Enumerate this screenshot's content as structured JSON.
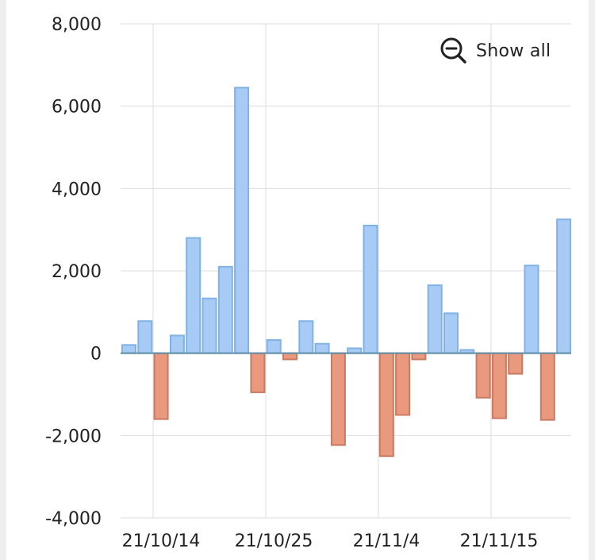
{
  "show_all": {
    "label": "Show all",
    "icon": "zoom-out-icon"
  },
  "colors": {
    "positive_fill": "#a8cbf5",
    "positive_stroke": "#7fb2e5",
    "negative_fill": "#e99a7e",
    "negative_stroke": "#c97a62",
    "grid": "#dddddd",
    "baseline": "#5f8fa8",
    "text": "#222222"
  },
  "chart_data": {
    "type": "bar",
    "ylim": [
      -4000,
      8000
    ],
    "y_ticks": [
      -4000,
      -2000,
      0,
      2000,
      4000,
      6000,
      8000
    ],
    "y_tick_labels": [
      "-4,000",
      "-2,000",
      "0",
      "2,000",
      "4,000",
      "6,000",
      "8,000"
    ],
    "x_tick_labels": [
      "21/10/14",
      "21/10/25",
      "21/11/4",
      "21/11/15"
    ],
    "grid": true,
    "values": [
      200,
      780,
      -1600,
      430,
      2800,
      1330,
      2100,
      6450,
      -950,
      320,
      -150,
      780,
      230,
      -2230,
      120,
      3100,
      -2500,
      -1500,
      -150,
      1650,
      970,
      80,
      -1080,
      -1580,
      -500,
      2130,
      -1620,
      3250
    ]
  }
}
